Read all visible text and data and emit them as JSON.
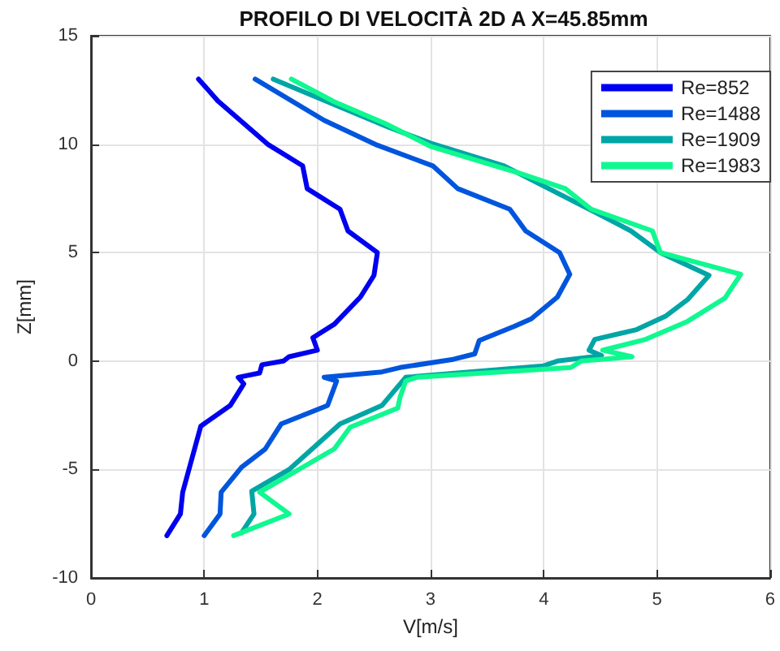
{
  "chart_data": {
    "type": "line",
    "title": "PROFILO DI VELOCITÀ 2D A X=45.85mm",
    "xlabel": "V[m/s]",
    "ylabel": "Z[mm]",
    "xlim": [
      0,
      6
    ],
    "xticks": [
      0,
      1,
      2,
      3,
      4,
      5,
      6
    ],
    "ylim": [
      -10,
      15
    ],
    "yticks": [
      -10,
      -5,
      0,
      5,
      10,
      15
    ],
    "grid": true,
    "legend": "top right",
    "marker": "none",
    "line_style": "solid",
    "series": [
      {
        "name": "Re=852",
        "color": "#0000f0",
        "x": [
          0.95,
          1.12,
          1.56,
          1.87,
          1.91,
          2.2,
          2.27,
          2.53,
          2.5,
          2.38,
          2.15,
          1.96,
          2.0,
          1.75,
          1.7,
          1.51,
          1.49,
          1.3,
          1.35,
          1.23,
          0.97,
          0.81,
          0.79,
          0.67
        ],
        "values": [
          13.0,
          12.0,
          10.0,
          9.0,
          7.95,
          7.0,
          6.0,
          5.0,
          3.95,
          2.95,
          1.7,
          1.08,
          0.5,
          0.2,
          0.0,
          -0.17,
          -0.55,
          -0.75,
          -1.05,
          -2.05,
          -3.0,
          -6.05,
          -7.05,
          -8.05
        ]
      },
      {
        "name": "Re=1488",
        "color": "#0055dd",
        "x": [
          1.45,
          2.06,
          2.53,
          3.02,
          3.24,
          3.7,
          3.84,
          4.14,
          4.23,
          4.12,
          3.89,
          3.74,
          3.43,
          3.39,
          3.2,
          2.73,
          2.57,
          2.06,
          2.17,
          2.09,
          1.68,
          1.54,
          1.33,
          1.15,
          1.14,
          1.0
        ],
        "values": [
          13.0,
          11.1,
          9.95,
          9.0,
          7.95,
          7.0,
          6.0,
          5.0,
          4.0,
          2.95,
          1.95,
          1.6,
          0.95,
          0.33,
          0.08,
          -0.3,
          -0.5,
          -0.75,
          -0.92,
          -2.05,
          -2.9,
          -4.05,
          -4.9,
          -6.05,
          -7.05,
          -8.05
        ]
      },
      {
        "name": "Re=1909",
        "color": "#00a5a5",
        "x": [
          1.61,
          2.62,
          3.0,
          3.65,
          4.42,
          4.77,
          5.03,
          5.46,
          5.27,
          5.08,
          4.82,
          4.45,
          4.4,
          4.51,
          4.12,
          4.0,
          2.78,
          2.57,
          2.2,
          1.75,
          1.42,
          1.44,
          1.33
        ],
        "values": [
          13.0,
          10.8,
          10.05,
          9.0,
          6.95,
          6.0,
          5.0,
          3.95,
          2.83,
          2.08,
          1.45,
          1.0,
          0.5,
          0.25,
          0.0,
          -0.22,
          -0.75,
          -2.05,
          -2.9,
          -5.0,
          -6.0,
          -7.05,
          -7.92
        ]
      },
      {
        "name": "Re=1983",
        "color": "#10f890",
        "x": [
          1.77,
          2.15,
          2.6,
          3.0,
          3.79,
          4.19,
          4.42,
          4.96,
          5.03,
          5.74,
          5.6,
          5.27,
          4.9,
          4.52,
          4.78,
          4.33,
          4.24,
          2.88,
          2.78,
          2.73,
          2.71,
          2.29,
          2.15,
          1.49,
          1.75,
          1.26
        ],
        "values": [
          13.0,
          11.95,
          10.95,
          9.9,
          8.65,
          7.95,
          7.0,
          6.0,
          5.0,
          4.0,
          2.9,
          1.83,
          1.0,
          0.5,
          0.2,
          0.0,
          -0.3,
          -0.75,
          -0.92,
          -1.67,
          -2.17,
          -3.05,
          -4.05,
          -6.05,
          -7.05,
          -8.05
        ]
      }
    ]
  }
}
